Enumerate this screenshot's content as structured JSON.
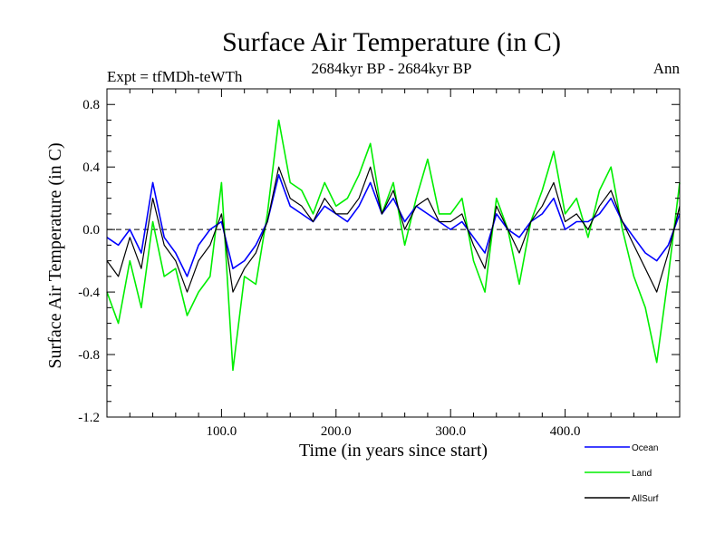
{
  "chart_data": {
    "type": "line",
    "title": "Surface Air Temperature (in C)",
    "subtitle_left": "Expt = tfMDh-teWTh",
    "subtitle_center": "2684kyr BP - 2684kyr BP",
    "subtitle_right": "Ann",
    "xlabel": "Time (in years since start)",
    "ylabel": "Surface Air Temperature (in C)",
    "xlim": [
      0,
      500
    ],
    "ylim": [
      -1.2,
      0.9
    ],
    "x_ticks": [
      100,
      200,
      300,
      400
    ],
    "x_tick_labels": [
      "100.0",
      "200.0",
      "300.0",
      "400.0"
    ],
    "y_ticks": [
      -1.2,
      -0.8,
      -0.4,
      0.0,
      0.4,
      0.8
    ],
    "y_tick_labels": [
      "-1.2",
      "-0.8",
      "-0.4",
      "0.0",
      "0.4",
      "0.8"
    ],
    "zero_line": 0.0,
    "x": [
      0,
      10,
      20,
      30,
      40,
      50,
      60,
      70,
      80,
      90,
      100,
      110,
      120,
      130,
      140,
      150,
      160,
      170,
      180,
      190,
      200,
      210,
      220,
      230,
      240,
      250,
      260,
      270,
      280,
      290,
      300,
      310,
      320,
      330,
      340,
      350,
      360,
      370,
      380,
      390,
      400,
      410,
      420,
      430,
      440,
      450,
      460,
      470,
      480,
      490,
      500
    ],
    "series": [
      {
        "name": "Ocean",
        "color": "#0000ff",
        "values": [
          -0.05,
          -0.1,
          0.0,
          -0.15,
          0.3,
          -0.05,
          -0.15,
          -0.3,
          -0.1,
          0.0,
          0.05,
          -0.25,
          -0.2,
          -0.1,
          0.05,
          0.35,
          0.15,
          0.1,
          0.05,
          0.15,
          0.1,
          0.05,
          0.15,
          0.3,
          0.1,
          0.2,
          0.05,
          0.15,
          0.1,
          0.05,
          0.0,
          0.05,
          -0.05,
          -0.15,
          0.1,
          0.0,
          -0.05,
          0.05,
          0.1,
          0.2,
          0.0,
          0.05,
          0.05,
          0.1,
          0.2,
          0.05,
          -0.05,
          -0.15,
          -0.2,
          -0.1,
          0.1
        ]
      },
      {
        "name": "Land",
        "color": "#00ee00",
        "values": [
          -0.4,
          -0.6,
          -0.2,
          -0.5,
          0.05,
          -0.3,
          -0.25,
          -0.55,
          -0.4,
          -0.3,
          0.3,
          -0.9,
          -0.3,
          -0.35,
          0.1,
          0.7,
          0.3,
          0.25,
          0.1,
          0.3,
          0.15,
          0.2,
          0.35,
          0.55,
          0.1,
          0.3,
          -0.1,
          0.2,
          0.45,
          0.1,
          0.1,
          0.2,
          -0.2,
          -0.4,
          0.2,
          0.0,
          -0.35,
          0.05,
          0.25,
          0.5,
          0.1,
          0.2,
          -0.05,
          0.25,
          0.4,
          0.0,
          -0.3,
          -0.5,
          -0.85,
          -0.3,
          0.3
        ]
      },
      {
        "name": "AllSurf",
        "color": "#000000",
        "values": [
          -0.2,
          -0.3,
          -0.05,
          -0.25,
          0.2,
          -0.1,
          -0.2,
          -0.4,
          -0.2,
          -0.1,
          0.1,
          -0.4,
          -0.25,
          -0.15,
          0.05,
          0.4,
          0.2,
          0.15,
          0.05,
          0.2,
          0.1,
          0.1,
          0.2,
          0.4,
          0.1,
          0.25,
          0.0,
          0.15,
          0.2,
          0.05,
          0.05,
          0.1,
          -0.1,
          -0.25,
          0.15,
          0.0,
          -0.15,
          0.05,
          0.15,
          0.3,
          0.05,
          0.1,
          0.0,
          0.15,
          0.25,
          0.05,
          -0.1,
          -0.25,
          -0.4,
          -0.15,
          0.15
        ]
      }
    ]
  }
}
